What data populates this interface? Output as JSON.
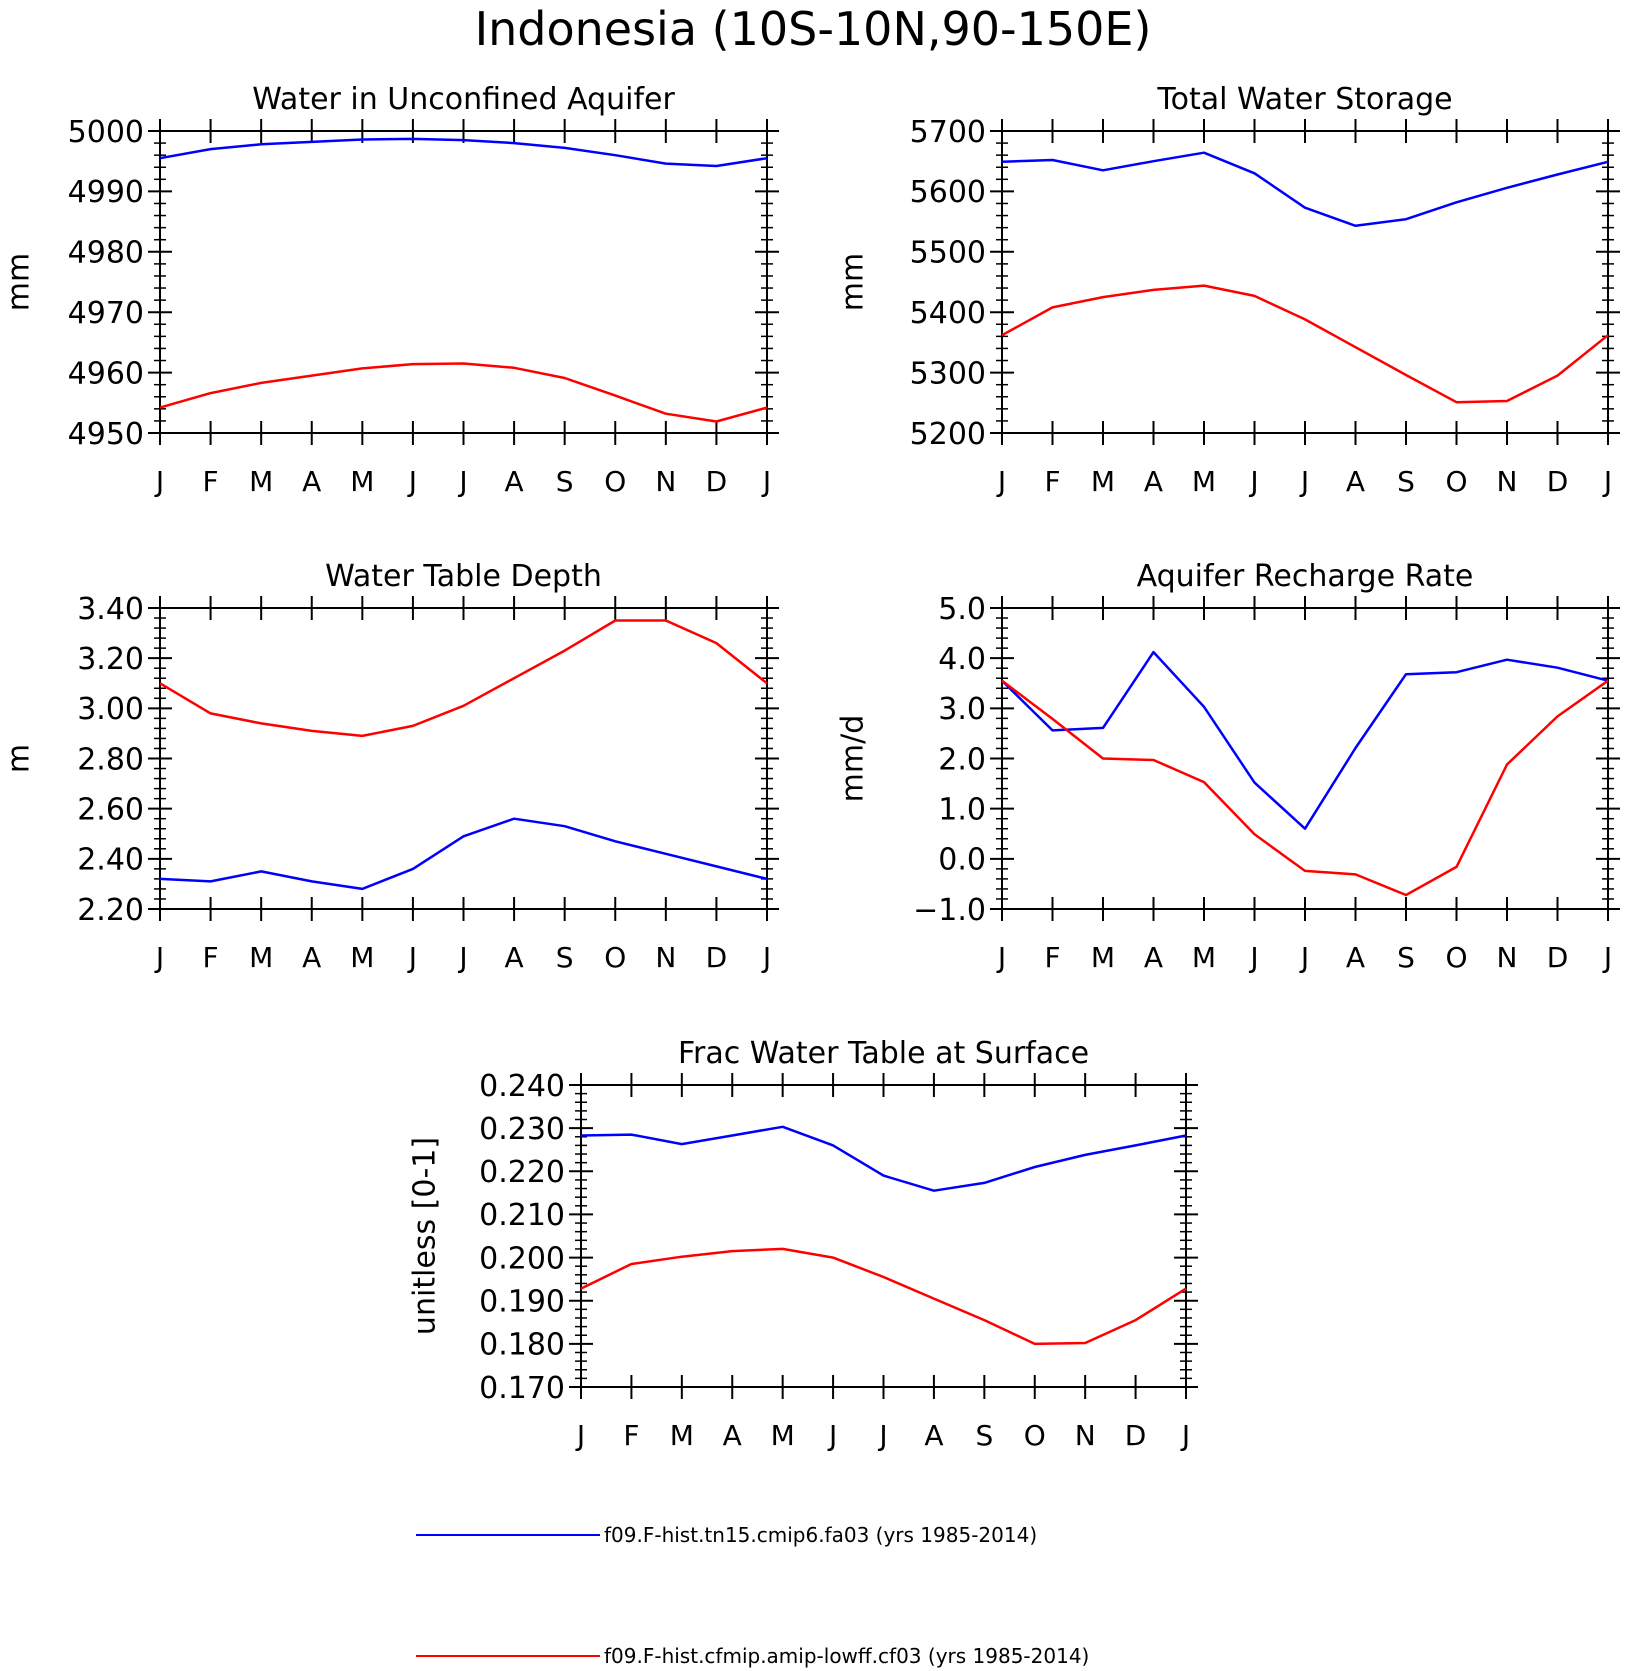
{
  "page_title": "Indonesia (10S-10N,90-150E)",
  "colors": {
    "series_a": "#0000ff",
    "series_b": "#ff0000",
    "axis": "#000000"
  },
  "months": [
    "J",
    "F",
    "M",
    "A",
    "M",
    "J",
    "J",
    "A",
    "S",
    "O",
    "N",
    "D",
    "J"
  ],
  "legend": [
    {
      "label": "f09.F-hist.tn15.cmip6.fa03 (yrs 1985-2014)",
      "color": "#0000ff"
    },
    {
      "label": "f09.F-hist.cfmip.amip-lowff.cf03 (yrs 1985-2014)",
      "color": "#ff0000"
    }
  ],
  "chart_data": [
    {
      "type": "line",
      "title": "Water in Unconfined Aquifer",
      "ylabel": "mm",
      "ylim": [
        4950,
        5000
      ],
      "yticks": [
        "4950",
        "4960",
        "4970",
        "4980",
        "4990",
        "5000"
      ],
      "categories": [
        "J",
        "F",
        "M",
        "A",
        "M",
        "J",
        "J",
        "A",
        "S",
        "O",
        "N",
        "D",
        "J"
      ],
      "series": [
        {
          "name": "f09.F-hist.tn15.cmip6.fa03 (yrs 1985-2014)",
          "color": "#0000ff",
          "values": [
            4995.5,
            4997.0,
            4997.8,
            4998.2,
            4998.6,
            4998.7,
            4998.5,
            4998.0,
            4997.2,
            4996.0,
            4994.6,
            4994.2,
            4995.5
          ]
        },
        {
          "name": "f09.F-hist.cfmip.amip-lowff.cf03 (yrs 1985-2014)",
          "color": "#ff0000",
          "values": [
            4954.2,
            4956.6,
            4958.3,
            4959.5,
            4960.7,
            4961.4,
            4961.5,
            4960.8,
            4959.1,
            4956.2,
            4953.2,
            4951.9,
            4954.2
          ]
        }
      ]
    },
    {
      "type": "line",
      "title": "Total Water Storage",
      "ylabel": "mm",
      "ylim": [
        5200,
        5700
      ],
      "yticks": [
        "5200",
        "5300",
        "5400",
        "5500",
        "5600",
        "5700"
      ],
      "categories": [
        "J",
        "F",
        "M",
        "A",
        "M",
        "J",
        "J",
        "A",
        "S",
        "O",
        "N",
        "D",
        "J"
      ],
      "series": [
        {
          "name": "f09.F-hist.tn15.cmip6.fa03 (yrs 1985-2014)",
          "color": "#0000ff",
          "values": [
            5649,
            5652,
            5635,
            5650,
            5664,
            5630,
            5573,
            5543,
            5554,
            5582,
            5606,
            5628,
            5649
          ]
        },
        {
          "name": "f09.F-hist.cfmip.amip-lowff.cf03 (yrs 1985-2014)",
          "color": "#ff0000",
          "values": [
            5362,
            5408,
            5425,
            5437,
            5444,
            5427,
            5388,
            5342,
            5296,
            5251,
            5253,
            5295,
            5362
          ]
        }
      ]
    },
    {
      "type": "line",
      "title": "Water Table Depth",
      "ylabel": "m",
      "ylim": [
        2.2,
        3.4
      ],
      "yticks": [
        "2.20",
        "2.40",
        "2.60",
        "2.80",
        "3.00",
        "3.20",
        "3.40"
      ],
      "categories": [
        "J",
        "F",
        "M",
        "A",
        "M",
        "J",
        "J",
        "A",
        "S",
        "O",
        "N",
        "D",
        "J"
      ],
      "series": [
        {
          "name": "f09.F-hist.tn15.cmip6.fa03 (yrs 1985-2014)",
          "color": "#0000ff",
          "values": [
            2.32,
            2.31,
            2.35,
            2.31,
            2.28,
            2.36,
            2.49,
            2.56,
            2.53,
            2.47,
            2.42,
            2.37,
            2.32
          ]
        },
        {
          "name": "f09.F-hist.cfmip.amip-lowff.cf03 (yrs 1985-2014)",
          "color": "#ff0000",
          "values": [
            3.1,
            2.98,
            2.94,
            2.91,
            2.89,
            2.93,
            3.01,
            3.12,
            3.23,
            3.35,
            3.35,
            3.26,
            3.1
          ]
        }
      ]
    },
    {
      "type": "line",
      "title": "Aquifer Recharge Rate",
      "ylabel": "mm/d",
      "ylim": [
        -1.0,
        5.0
      ],
      "yticks": [
        "-1.0",
        "0.0",
        "1.0",
        "2.0",
        "3.0",
        "4.0",
        "5.0"
      ],
      "categories": [
        "J",
        "F",
        "M",
        "A",
        "M",
        "J",
        "J",
        "A",
        "S",
        "O",
        "N",
        "D",
        "J"
      ],
      "series": [
        {
          "name": "f09.F-hist.tn15.cmip6.fa03 (yrs 1985-2014)",
          "color": "#0000ff",
          "values": [
            3.55,
            2.56,
            2.61,
            4.12,
            3.03,
            1.52,
            0.6,
            2.21,
            3.68,
            3.72,
            3.97,
            3.81,
            3.55
          ]
        },
        {
          "name": "f09.F-hist.cfmip.amip-lowff.cf03 (yrs 1985-2014)",
          "color": "#ff0000",
          "values": [
            3.55,
            2.79,
            2.0,
            1.97,
            1.53,
            0.49,
            -0.24,
            -0.31,
            -0.72,
            -0.16,
            1.88,
            2.84,
            3.55
          ]
        }
      ]
    },
    {
      "type": "line",
      "title": "Frac Water Table at Surface",
      "ylabel": "unitless [0-1]",
      "ylim": [
        0.17,
        0.24
      ],
      "yticks": [
        "0.170",
        "0.180",
        "0.190",
        "0.200",
        "0.210",
        "0.220",
        "0.230",
        "0.240"
      ],
      "categories": [
        "J",
        "F",
        "M",
        "A",
        "M",
        "J",
        "J",
        "A",
        "S",
        "O",
        "N",
        "D",
        "J"
      ],
      "series": [
        {
          "name": "f09.F-hist.tn15.cmip6.fa03 (yrs 1985-2014)",
          "color": "#0000ff",
          "values": [
            0.2283,
            0.2285,
            0.2263,
            0.2283,
            0.2303,
            0.226,
            0.219,
            0.2155,
            0.2173,
            0.221,
            0.2238,
            0.226,
            0.2283
          ]
        },
        {
          "name": "f09.F-hist.cfmip.amip-lowff.cf03 (yrs 1985-2014)",
          "color": "#ff0000",
          "values": [
            0.1928,
            0.1985,
            0.2002,
            0.2015,
            0.202,
            0.2,
            0.1955,
            0.1905,
            0.1855,
            0.18,
            0.1802,
            0.1855,
            0.1928
          ]
        }
      ]
    }
  ]
}
